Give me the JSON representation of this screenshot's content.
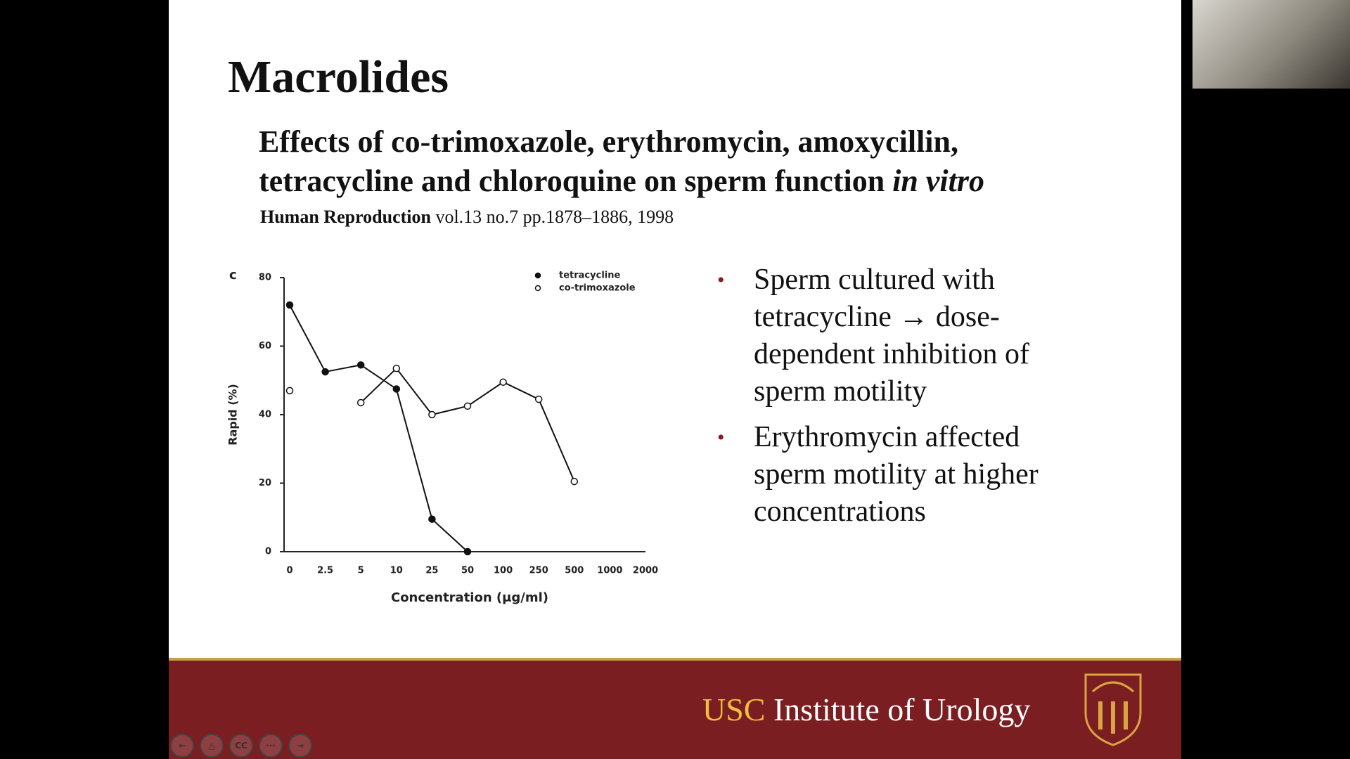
{
  "slide": {
    "title": "Macrolides",
    "paper_title": [
      "Effects of co-trimoxazole, erythromycin, amoxycillin,",
      "tetracycline and chloroquine on sperm function",
      "in vitro"
    ],
    "journal": "Human Reproduction",
    "citation": "vol.13 no.7 pp.1878–1886, 1998",
    "bullets": [
      "Sperm cultured with tetracycline → dose-dependent inhibition of sperm motility",
      "Erythromycin affected sperm motility at higher concentrations"
    ],
    "footer_brand": "USC",
    "footer_text": "Institute of Urology"
  },
  "player": {
    "cc_label": "CC"
  },
  "chart_data": {
    "type": "line",
    "panel_label": "c",
    "x_label": "Concentration (μg/ml)",
    "y_label": "Rapid (%)",
    "categories": [
      "0",
      "2.5",
      "5",
      "10",
      "25",
      "50",
      "100",
      "250",
      "500",
      "1000",
      "2000"
    ],
    "ylim": [
      0,
      80
    ],
    "yticks": [
      0,
      20,
      40,
      60,
      80
    ],
    "legend": "top-right",
    "series": [
      {
        "name": "tetracycline",
        "color": "#111111",
        "marker_fill": "#111111",
        "values": [
          72,
          52.5,
          54.5,
          47.5,
          9.5,
          0,
          null,
          null,
          null,
          null,
          null
        ]
      },
      {
        "name": "co-trimoxazole",
        "color": "#111111",
        "marker_fill": "#ffffff",
        "values": [
          47,
          null,
          43.5,
          53.5,
          40,
          42.5,
          49.5,
          44.5,
          20.5,
          null,
          null
        ]
      }
    ]
  }
}
